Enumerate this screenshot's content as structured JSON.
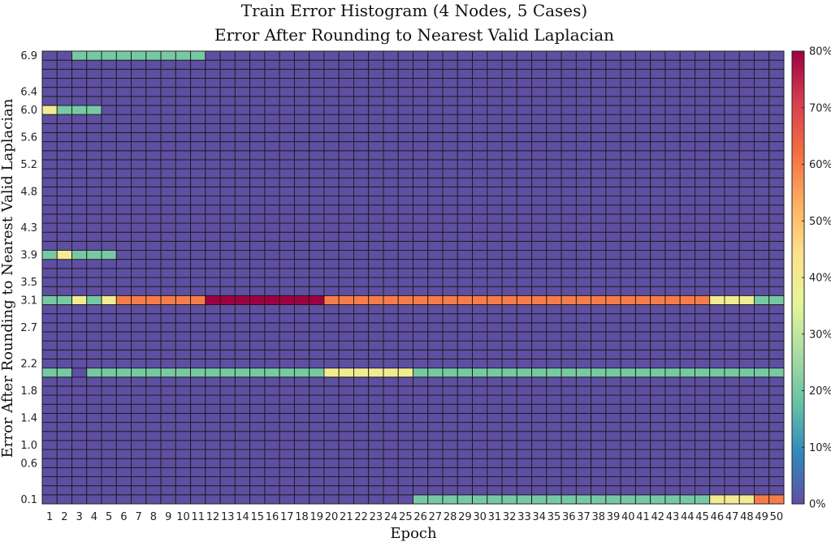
{
  "chart_data": {
    "type": "heatmap",
    "title": "Train Error Histogram (4 Nodes, 5 Cases)",
    "subtitle": "Error After Rounding to Nearest Valid Laplacian",
    "xlabel": "Epoch",
    "ylabel": "Error After Rounding to Nearest Valid Laplacian",
    "x_categories": [
      1,
      2,
      3,
      4,
      5,
      6,
      7,
      8,
      9,
      10,
      11,
      12,
      13,
      14,
      15,
      16,
      17,
      18,
      19,
      20,
      21,
      22,
      23,
      24,
      25,
      26,
      27,
      28,
      29,
      30,
      31,
      32,
      33,
      34,
      35,
      36,
      37,
      38,
      39,
      40,
      41,
      42,
      43,
      44,
      45,
      46,
      47,
      48,
      49,
      50
    ],
    "y_bins": 50,
    "y_range": [
      0.1,
      6.9
    ],
    "y_tick_labels": [
      "0.1",
      "0.6",
      "1.0",
      "1.4",
      "1.8",
      "2.2",
      "2.7",
      "3.1",
      "3.5",
      "3.9",
      "4.3",
      "4.8",
      "5.2",
      "5.6",
      "6.0",
      "6.4",
      "6.9"
    ],
    "colorbar": {
      "range": [
        0,
        80
      ],
      "unit": "%",
      "tick_labels": [
        "0%",
        "10%",
        "20%",
        "30%",
        "40%",
        "50%",
        "60%",
        "70%",
        "80%"
      ]
    },
    "cells": [
      {
        "label": "6.9",
        "values": [
          0,
          0,
          20,
          20,
          20,
          20,
          20,
          20,
          20,
          20,
          20,
          0,
          0,
          0,
          0,
          0,
          0,
          0,
          0,
          0,
          0,
          0,
          0,
          0,
          0,
          0,
          0,
          0,
          0,
          0,
          0,
          0,
          0,
          0,
          0,
          0,
          0,
          0,
          0,
          0,
          0,
          0,
          0,
          0,
          0,
          0,
          0,
          0,
          0,
          0
        ]
      },
      {
        "label": "6.0",
        "values": [
          40,
          20,
          20,
          20,
          0,
          0,
          0,
          0,
          0,
          0,
          0,
          0,
          0,
          0,
          0,
          0,
          0,
          0,
          0,
          0,
          0,
          0,
          0,
          0,
          0,
          0,
          0,
          0,
          0,
          0,
          0,
          0,
          0,
          0,
          0,
          0,
          0,
          0,
          0,
          0,
          0,
          0,
          0,
          0,
          0,
          0,
          0,
          0,
          0,
          0
        ]
      },
      {
        "label": "3.9",
        "values": [
          20,
          40,
          20,
          20,
          20,
          0,
          0,
          0,
          0,
          0,
          0,
          0,
          0,
          0,
          0,
          0,
          0,
          0,
          0,
          0,
          0,
          0,
          0,
          0,
          0,
          0,
          0,
          0,
          0,
          0,
          0,
          0,
          0,
          0,
          0,
          0,
          0,
          0,
          0,
          0,
          0,
          0,
          0,
          0,
          0,
          0,
          0,
          0,
          0,
          0
        ]
      },
      {
        "label": "3.1",
        "values": [
          20,
          20,
          40,
          20,
          40,
          60,
          60,
          60,
          60,
          60,
          60,
          80,
          80,
          80,
          80,
          80,
          80,
          80,
          80,
          60,
          60,
          60,
          60,
          60,
          60,
          60,
          60,
          60,
          60,
          60,
          60,
          60,
          60,
          60,
          60,
          60,
          60,
          60,
          60,
          60,
          60,
          60,
          60,
          60,
          60,
          40,
          40,
          40,
          20,
          20
        ]
      },
      {
        "label": "2.0",
        "values": [
          20,
          20,
          0,
          20,
          20,
          20,
          20,
          20,
          20,
          20,
          20,
          20,
          20,
          20,
          20,
          20,
          20,
          20,
          20,
          40,
          40,
          40,
          40,
          40,
          40,
          20,
          20,
          20,
          20,
          20,
          20,
          20,
          20,
          20,
          20,
          20,
          20,
          20,
          20,
          20,
          20,
          20,
          20,
          20,
          20,
          20,
          20,
          20,
          20,
          20
        ]
      },
      {
        "label": "0.1",
        "values": [
          0,
          0,
          0,
          0,
          0,
          0,
          0,
          0,
          0,
          0,
          0,
          0,
          0,
          0,
          0,
          0,
          0,
          0,
          0,
          0,
          0,
          0,
          0,
          0,
          0,
          20,
          20,
          20,
          20,
          20,
          20,
          20,
          20,
          20,
          20,
          20,
          20,
          20,
          20,
          20,
          20,
          20,
          20,
          20,
          20,
          40,
          40,
          40,
          60,
          60
        ]
      }
    ],
    "colormap": [
      "#5e4fa2",
      "#3288bd",
      "#66c2a5",
      "#abdda4",
      "#e6f598",
      "#fee08b",
      "#fdae61",
      "#f46d43",
      "#d53e4f",
      "#9e0142"
    ]
  }
}
